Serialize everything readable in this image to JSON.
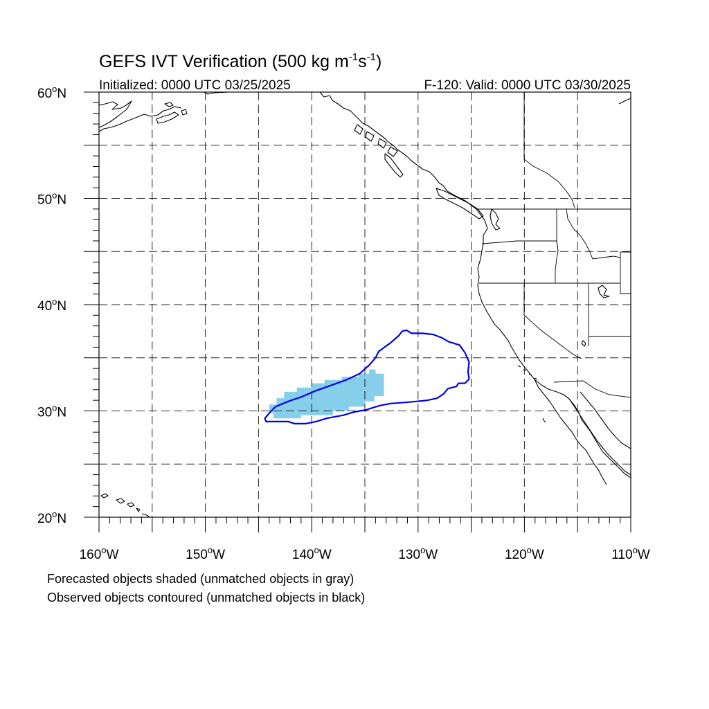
{
  "title": {
    "main": "GEFS IVT Verification (500 kg m",
    "sup1": "-1",
    "mid": "s",
    "sup2": "-1",
    "end": ")"
  },
  "init_label": "Initialized: 0000 UTC 03/25/2025",
  "valid_label": "F-120: Valid: 0000 UTC 03/30/2025",
  "lat_labels": [
    "60",
    "50",
    "40",
    "30",
    "20"
  ],
  "lat_suffix": "N",
  "lon_labels": [
    "160",
    "150",
    "140",
    "130",
    "120",
    "110"
  ],
  "lon_suffix": "W",
  "degree_mark": "o",
  "notes": {
    "line1": "Forecasted objects shaded (unmatched objects in gray)",
    "line2": "Observed objects contoured (unmatched objects in black)"
  },
  "colors": {
    "forecast_fill": "#87ceeb",
    "observed_contour": "#0000e6",
    "coast": "#000000"
  },
  "map": {
    "lon_range": [
      -160,
      -110
    ],
    "lat_range": [
      20,
      60
    ],
    "grid_interval_deg": 5,
    "grid_style": "dashed",
    "forecast_object": [
      [
        -144,
        29.8
      ],
      [
        -144,
        30.6
      ],
      [
        -143.3,
        30.6
      ],
      [
        -143.3,
        31.2
      ],
      [
        -142.6,
        31.2
      ],
      [
        -142.6,
        31.8
      ],
      [
        -141.4,
        31.8
      ],
      [
        -141.4,
        32.2
      ],
      [
        -140,
        32.2
      ],
      [
        -140,
        32.6
      ],
      [
        -138.8,
        32.6
      ],
      [
        -138.8,
        32.9
      ],
      [
        -137.2,
        32.9
      ],
      [
        -137.2,
        33.2
      ],
      [
        -135.6,
        33.2
      ],
      [
        -135.6,
        33.5
      ],
      [
        -134.6,
        33.5
      ],
      [
        -134.6,
        33.9
      ],
      [
        -134,
        33.9
      ],
      [
        -134,
        33.5
      ],
      [
        -133.2,
        33.5
      ],
      [
        -133.2,
        31.4
      ],
      [
        -134.1,
        31.4
      ],
      [
        -134.1,
        30.9
      ],
      [
        -135,
        30.9
      ],
      [
        -135,
        30.4
      ],
      [
        -136.5,
        30.4
      ],
      [
        -136.5,
        30
      ],
      [
        -138,
        30
      ],
      [
        -138,
        29.6
      ],
      [
        -141,
        29.6
      ],
      [
        -141,
        29.3
      ],
      [
        -143.6,
        29.3
      ],
      [
        -143.6,
        29.8
      ]
    ],
    "observed_object": [
      [
        -144.4,
        29.3
      ],
      [
        -143.9,
        29.9
      ],
      [
        -143.4,
        30.4
      ],
      [
        -142.2,
        30.9
      ],
      [
        -141,
        31.3
      ],
      [
        -139.6,
        31.9
      ],
      [
        -138.2,
        32.4
      ],
      [
        -136.8,
        32.9
      ],
      [
        -135.5,
        33.5
      ],
      [
        -134.6,
        34.3
      ],
      [
        -134,
        35
      ],
      [
        -133.7,
        35.6
      ],
      [
        -132.6,
        36.4
      ],
      [
        -131.8,
        37.1
      ],
      [
        -131.5,
        37.5
      ],
      [
        -131.1,
        37.6
      ],
      [
        -130.6,
        37.3
      ],
      [
        -129.6,
        37.3
      ],
      [
        -128.6,
        37.2
      ],
      [
        -127.8,
        36.9
      ],
      [
        -127.1,
        36.5
      ],
      [
        -126.1,
        36.2
      ],
      [
        -125.6,
        35.5
      ],
      [
        -125.2,
        34.6
      ],
      [
        -125.3,
        33.7
      ],
      [
        -125.2,
        33
      ],
      [
        -125.6,
        32.6
      ],
      [
        -126.2,
        32.6
      ],
      [
        -126.4,
        32.3
      ],
      [
        -127.2,
        32.1
      ],
      [
        -127.6,
        31.6
      ],
      [
        -128.2,
        31.2
      ],
      [
        -129.1,
        31
      ],
      [
        -130.1,
        30.9
      ],
      [
        -131.2,
        30.8
      ],
      [
        -132.6,
        30.7
      ],
      [
        -133.6,
        30.5
      ],
      [
        -134.9,
        30.1
      ],
      [
        -136,
        29.9
      ],
      [
        -137,
        29.6
      ],
      [
        -138.6,
        29.3
      ],
      [
        -139.6,
        29
      ],
      [
        -140.6,
        28.8
      ],
      [
        -141.6,
        28.8
      ],
      [
        -142.2,
        29
      ],
      [
        -143.4,
        29
      ],
      [
        -144.3,
        29
      ]
    ]
  }
}
